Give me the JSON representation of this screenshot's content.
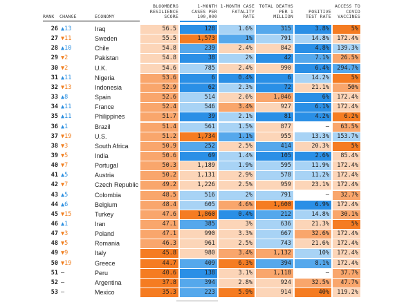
{
  "header": {
    "rank": "RANK",
    "change": "CHANGE",
    "economy": "ECONOMY",
    "columns": [
      [
        "BLOOMBERG",
        "RESILIENCE",
        "SCORE"
      ],
      [
        "1-MONTH",
        "CASES PER",
        "100,000"
      ],
      [
        "1-MONTH CASE",
        "FATALITY",
        "RATE"
      ],
      [
        "TOTAL DEATHS",
        "PER 1",
        "MILLION"
      ],
      [
        "POSITIVE",
        "TEST RATE"
      ],
      [
        "ACCESS TO",
        "COVID",
        "VACCINES"
      ]
    ]
  },
  "table": {
    "up_color": "#2b8fe0",
    "down_color": "#f07d1d",
    "rows": [
      {
        "rank": 26,
        "change": "▲13",
        "economy": "Iraq",
        "cells": [
          "56.5",
          "128",
          "1.6%",
          "315",
          "3.8%",
          "5%"
        ],
        "colors": [
          "#fcd5b8",
          "#2a8fe6",
          "#a8d3f5",
          "#55a8ec",
          "#2a8fe6",
          "#f57c22"
        ]
      },
      {
        "rank": 27,
        "change": "▼11",
        "economy": "Sweden",
        "cells": [
          "55.5",
          "1,573",
          "1%",
          "791",
          "14.8%",
          "172.4%"
        ],
        "colors": [
          "#fcd5b8",
          "#f57c22",
          "#55a8ec",
          "#a8d3f5",
          "#a8d3f5",
          "#fcd5b8"
        ]
      },
      {
        "rank": 28,
        "change": "▲10",
        "economy": "Chile",
        "cells": [
          "54.8",
          "239",
          "2.4%",
          "842",
          "4.8%",
          "139.3%"
        ],
        "colors": [
          "#fcd5b8",
          "#55a8ec",
          "#fcd5b8",
          "#fcd5b8",
          "#2a8fe6",
          "#a8d3f5"
        ]
      },
      {
        "rank": 29,
        "change": "▼2",
        "economy": "Pakistan",
        "cells": [
          "54.8",
          "38",
          "2%",
          "42",
          "7.1%",
          "26.5%"
        ],
        "colors": [
          "#fcd5b8",
          "#2a8fe6",
          "#a8d3f5",
          "#2a8fe6",
          "#55a8ec",
          "#f9a66c"
        ]
      },
      {
        "rank": 30,
        "change": "▼2",
        "economy": "U.K.",
        "cells": [
          "54.6",
          "785",
          "2.4%",
          "990",
          "6.4%",
          "294.7%"
        ],
        "colors": [
          "#fcd5b8",
          "#a8d3f5",
          "#fcd5b8",
          "#fcd5b8",
          "#2a8fe6",
          "#55a8ec"
        ]
      },
      {
        "rank": 31,
        "change": "▲11",
        "economy": "Nigeria",
        "cells": [
          "53.6",
          "6",
          "0.4%",
          "6",
          "14.2%",
          "5%"
        ],
        "colors": [
          "#f9a66c",
          "#2a8fe6",
          "#2a8fe6",
          "#2a8fe6",
          "#a8d3f5",
          "#f57c22"
        ]
      },
      {
        "rank": 32,
        "change": "▼13",
        "economy": "Indonesia",
        "cells": [
          "52.9",
          "62",
          "2.3%",
          "72",
          "21.1%",
          "50%"
        ],
        "colors": [
          "#f9a66c",
          "#2a8fe6",
          "#a8d3f5",
          "#2a8fe6",
          "#fcd5b8",
          "#f9a66c"
        ]
      },
      {
        "rank": 33,
        "change": "▲8",
        "economy": "Spain",
        "cells": [
          "52.6",
          "514",
          "2.6%",
          "1,046",
          "6%",
          "172.4%"
        ],
        "colors": [
          "#f9a66c",
          "#a8d3f5",
          "#fcd5b8",
          "#f9a66c",
          "#2a8fe6",
          "#fcd5b8"
        ]
      },
      {
        "rank": 34,
        "change": "▲11",
        "economy": "France",
        "cells": [
          "52.4",
          "546",
          "3.4%",
          "927",
          "6.1%",
          "172.4%"
        ],
        "colors": [
          "#f9a66c",
          "#a8d3f5",
          "#f9a66c",
          "#fcd5b8",
          "#2a8fe6",
          "#fcd5b8"
        ]
      },
      {
        "rank": 35,
        "change": "▲11",
        "economy": "Philippines",
        "cells": [
          "51.7",
          "39",
          "2.1%",
          "81",
          "4.2%",
          "6.2%"
        ],
        "colors": [
          "#f9a66c",
          "#2a8fe6",
          "#a8d3f5",
          "#2a8fe6",
          "#2a8fe6",
          "#f57c22"
        ]
      },
      {
        "rank": 36,
        "change": "▲1",
        "economy": "Brazil",
        "cells": [
          "51.4",
          "561",
          "1.5%",
          "877",
          "–",
          "63.5%"
        ],
        "colors": [
          "#f9a66c",
          "#a8d3f5",
          "#a8d3f5",
          "#fcd5b8",
          "#ffffff",
          "#f9a66c"
        ]
      },
      {
        "rank": 37,
        "change": "▼19",
        "economy": "U.S.",
        "cells": [
          "51.2",
          "1,734",
          "1.1%",
          "955",
          "13.3%",
          "153.7%"
        ],
        "colors": [
          "#f9a66c",
          "#f57c22",
          "#55a8ec",
          "#fcd5b8",
          "#a8d3f5",
          "#a8d3f5"
        ]
      },
      {
        "rank": 38,
        "change": "▼3",
        "economy": "South Africa",
        "cells": [
          "50.9",
          "252",
          "2.5%",
          "414",
          "20.3%",
          "5%"
        ],
        "colors": [
          "#f9a66c",
          "#55a8ec",
          "#fcd5b8",
          "#55a8ec",
          "#fcd5b8",
          "#f57c22"
        ]
      },
      {
        "rank": 39,
        "change": "▼5",
        "economy": "India",
        "cells": [
          "50.6",
          "69",
          "1.4%",
          "105",
          "2.6%",
          "85.4%"
        ],
        "colors": [
          "#f9a66c",
          "#2a8fe6",
          "#a8d3f5",
          "#2a8fe6",
          "#2a8fe6",
          "#fcd5b8"
        ]
      },
      {
        "rank": 40,
        "change": "▼7",
        "economy": "Portugal",
        "cells": [
          "50.3",
          "1,189",
          "1.9%",
          "595",
          "11.9%",
          "172.4%"
        ],
        "colors": [
          "#f9a66c",
          "#fcd5b8",
          "#a8d3f5",
          "#a8d3f5",
          "#a8d3f5",
          "#fcd5b8"
        ]
      },
      {
        "rank": 41,
        "change": "▲5",
        "economy": "Austria",
        "cells": [
          "50.2",
          "1,131",
          "2.9%",
          "578",
          "11.2%",
          "172.4%"
        ],
        "colors": [
          "#f9a66c",
          "#fcd5b8",
          "#fcd5b8",
          "#a8d3f5",
          "#a8d3f5",
          "#fcd5b8"
        ]
      },
      {
        "rank": 42,
        "change": "▼7",
        "economy": "Czech Republic",
        "cells": [
          "49.2",
          "1,226",
          "2.5%",
          "959",
          "23.1%",
          "172.4%"
        ],
        "colors": [
          "#f9a66c",
          "#fcd5b8",
          "#fcd5b8",
          "#fcd5b8",
          "#fcd5b8",
          "#fcd5b8"
        ]
      },
      {
        "rank": 43,
        "change": "▲5",
        "economy": "Colombia",
        "cells": [
          "48.5",
          "516",
          "2%",
          "791",
          "–",
          "32.7%"
        ],
        "colors": [
          "#f9a66c",
          "#a8d3f5",
          "#a8d3f5",
          "#a8d3f5",
          "#ffffff",
          "#f9a66c"
        ]
      },
      {
        "rank": 44,
        "change": "▲6",
        "economy": "Belgium",
        "cells": [
          "48.4",
          "605",
          "4.6%",
          "1,600",
          "6.9%",
          "172.4%"
        ],
        "colors": [
          "#f9a66c",
          "#a8d3f5",
          "#f9a66c",
          "#f57c22",
          "#2a8fe6",
          "#fcd5b8"
        ]
      },
      {
        "rank": 45,
        "change": "▼15",
        "economy": "Turkey",
        "cells": [
          "47.6",
          "1,860",
          "0.4%",
          "212",
          "14.8%",
          "30.1%"
        ],
        "colors": [
          "#f9a66c",
          "#f57c22",
          "#2a8fe6",
          "#55a8ec",
          "#a8d3f5",
          "#f9a66c"
        ]
      },
      {
        "rank": 46,
        "change": "▲1",
        "economy": "Iran",
        "cells": [
          "47.1",
          "385",
          "3%",
          "636",
          "21.3%",
          "5%"
        ],
        "colors": [
          "#f9a66c",
          "#55a8ec",
          "#fcd5b8",
          "#a8d3f5",
          "#fcd5b8",
          "#f57c22"
        ]
      },
      {
        "rank": 47,
        "change": "▼3",
        "economy": "Poland",
        "cells": [
          "47.1",
          "990",
          "3.3%",
          "667",
          "32.6%",
          "172.4%"
        ],
        "colors": [
          "#f9a66c",
          "#fcd5b8",
          "#fcd5b8",
          "#a8d3f5",
          "#f9a66c",
          "#fcd5b8"
        ]
      },
      {
        "rank": 48,
        "change": "▼5",
        "economy": "Romania",
        "cells": [
          "46.3",
          "961",
          "2.5%",
          "743",
          "21.6%",
          "172.4%"
        ],
        "colors": [
          "#f9a66c",
          "#fcd5b8",
          "#fcd5b8",
          "#a8d3f5",
          "#fcd5b8",
          "#fcd5b8"
        ]
      },
      {
        "rank": 49,
        "change": "▼9",
        "economy": "Italy",
        "cells": [
          "45.8",
          "980",
          "3.4%",
          "1,132",
          "10%",
          "172.4%"
        ],
        "colors": [
          "#f57c22",
          "#fcd5b8",
          "#f9a66c",
          "#f9a66c",
          "#a8d3f5",
          "#fcd5b8"
        ]
      },
      {
        "rank": 50,
        "change": "▼19",
        "economy": "Greece",
        "cells": [
          "44.7",
          "409",
          "6.3%",
          "394",
          "8.1%",
          "172.4%"
        ],
        "colors": [
          "#f57c22",
          "#55a8ec",
          "#f57c22",
          "#55a8ec",
          "#55a8ec",
          "#fcd5b8"
        ]
      },
      {
        "rank": 51,
        "change": "–",
        "economy": "Peru",
        "cells": [
          "40.6",
          "138",
          "3.1%",
          "1,118",
          "–",
          "37.7%"
        ],
        "colors": [
          "#f57c22",
          "#2a8fe6",
          "#fcd5b8",
          "#f9a66c",
          "#ffffff",
          "#f9a66c"
        ]
      },
      {
        "rank": 52,
        "change": "–",
        "economy": "Argentina",
        "cells": [
          "37.8",
          "394",
          "2.8%",
          "924",
          "32.5%",
          "47.7%"
        ],
        "colors": [
          "#f57c22",
          "#55a8ec",
          "#fcd5b8",
          "#fcd5b8",
          "#f9a66c",
          "#f9a66c"
        ]
      },
      {
        "rank": 53,
        "change": "–",
        "economy": "Mexico",
        "cells": [
          "35.3",
          "223",
          "5.9%",
          "914",
          "40%",
          "119.2%"
        ],
        "colors": [
          "#f57c22",
          "#55a8ec",
          "#f57c22",
          "#fcd5b8",
          "#f57c22",
          "#fcd5b8"
        ]
      }
    ]
  }
}
